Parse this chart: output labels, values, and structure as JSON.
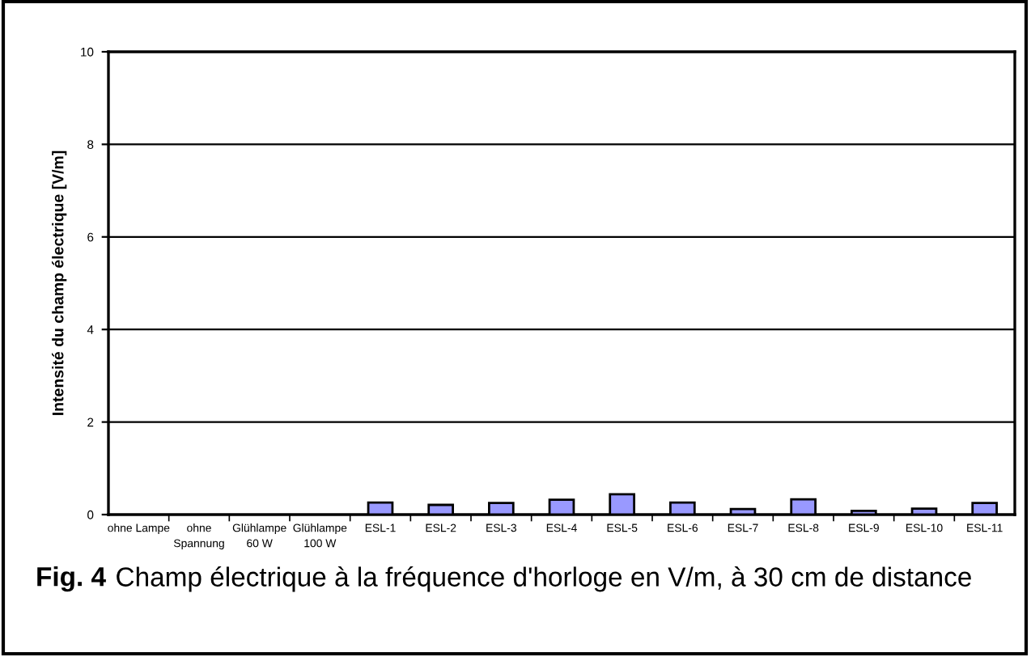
{
  "chart_data": {
    "type": "bar",
    "ylabel": "Intensité du champ électrique [V/m]",
    "categories": [
      "ohne Lampe",
      "ohne\nSpannung",
      "Glühlampe\n60 W",
      "Glühlampe\n100 W",
      "ESL-1",
      "ESL-2",
      "ESL-3",
      "ESL-4",
      "ESL-5",
      "ESL-6",
      "ESL-7",
      "ESL-8",
      "ESL-9",
      "ESL-10",
      "ESL-11"
    ],
    "values": [
      0,
      0,
      0,
      0,
      0.26,
      0.21,
      0.25,
      0.32,
      0.44,
      0.26,
      0.12,
      0.33,
      0.08,
      0.13,
      0.25
    ],
    "color": "#9999ff",
    "ylim": [
      0,
      10
    ],
    "yticks": [
      0,
      2,
      4,
      6,
      8,
      10
    ],
    "grid": "y",
    "annotations": [
      "Fig. 4",
      "Champ électrique à la fréquence d'horloge en V/m, à 30 cm de distance"
    ]
  }
}
